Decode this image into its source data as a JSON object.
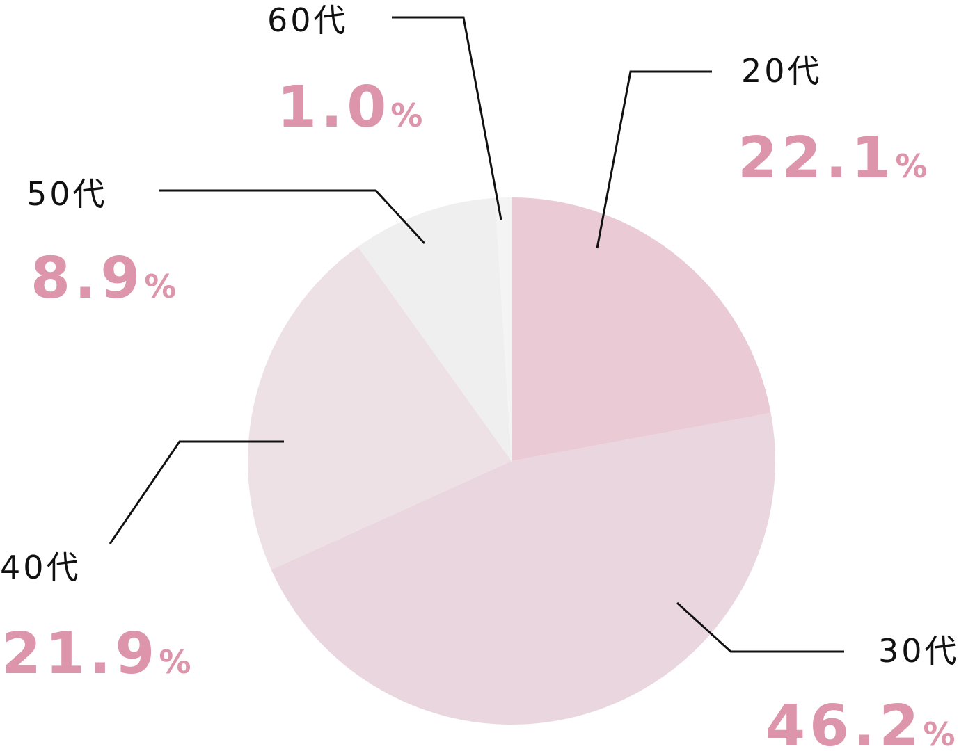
{
  "chart_data": {
    "type": "pie",
    "categories": [
      "20代",
      "30代",
      "40代",
      "50代",
      "60代"
    ],
    "values": [
      22.1,
      46.2,
      21.9,
      8.9,
      1.0
    ],
    "value_labels": [
      "22.1",
      "46.2",
      "21.9",
      "8.9",
      "1.0"
    ],
    "unit": "%",
    "colors": [
      "#e9cad5",
      "#ead6de",
      "#ede1e6",
      "#efefef",
      "#f4f4f4"
    ],
    "label_color": "#dd95ac"
  }
}
